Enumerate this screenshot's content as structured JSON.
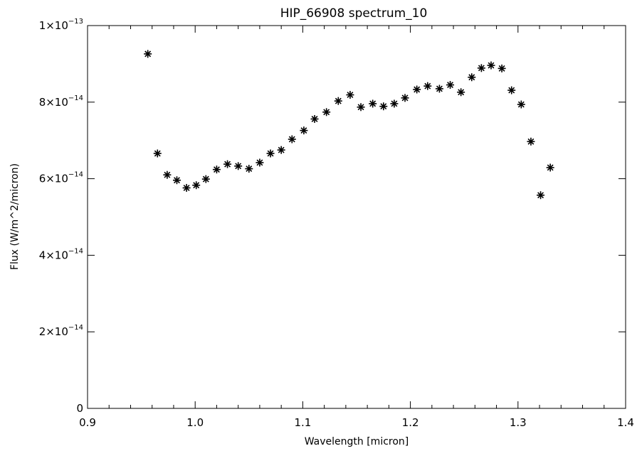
{
  "chart_data": {
    "type": "scatter",
    "title": "HIP_66908 spectrum_10",
    "xlabel": "Wavelength [micron]",
    "ylabel": "Flux (W/m^2/micron)",
    "xlim": [
      0.9,
      1.4
    ],
    "ylim": [
      0,
      1e-13
    ],
    "grid": false,
    "marker": "asterisk",
    "color": "#000000",
    "x_ticks": [
      {
        "value": 0.9,
        "label": "0.9"
      },
      {
        "value": 1.0,
        "label": "1.0"
      },
      {
        "value": 1.1,
        "label": "1.1"
      },
      {
        "value": 1.2,
        "label": "1.2"
      },
      {
        "value": 1.3,
        "label": "1.3"
      },
      {
        "value": 1.4,
        "label": "1.4"
      }
    ],
    "y_ticks": [
      {
        "value": 0,
        "mantissa": "0",
        "exponent": ""
      },
      {
        "value": 2e-14,
        "mantissa": "2×10",
        "exponent": "−14"
      },
      {
        "value": 4e-14,
        "mantissa": "4×10",
        "exponent": "−14"
      },
      {
        "value": 6e-14,
        "mantissa": "6×10",
        "exponent": "−14"
      },
      {
        "value": 8e-14,
        "mantissa": "8×10",
        "exponent": "−14"
      },
      {
        "value": 1e-13,
        "mantissa": "1×10",
        "exponent": "−13"
      }
    ],
    "x_minor_step": 0.02,
    "y_minor_step": 5e-15,
    "points": [
      {
        "x": 0.956,
        "y": 9.26e-14
      },
      {
        "x": 0.965,
        "y": 6.66e-14
      },
      {
        "x": 0.974,
        "y": 6.1e-14
      },
      {
        "x": 0.983,
        "y": 5.96e-14
      },
      {
        "x": 0.992,
        "y": 5.76e-14
      },
      {
        "x": 1.001,
        "y": 5.83e-14
      },
      {
        "x": 1.01,
        "y": 5.99e-14
      },
      {
        "x": 1.02,
        "y": 6.24e-14
      },
      {
        "x": 1.03,
        "y": 6.38e-14
      },
      {
        "x": 1.04,
        "y": 6.33e-14
      },
      {
        "x": 1.05,
        "y": 6.26e-14
      },
      {
        "x": 1.06,
        "y": 6.42e-14
      },
      {
        "x": 1.07,
        "y": 6.66e-14
      },
      {
        "x": 1.08,
        "y": 6.75e-14
      },
      {
        "x": 1.09,
        "y": 7.03e-14
      },
      {
        "x": 1.101,
        "y": 7.26e-14
      },
      {
        "x": 1.111,
        "y": 7.56e-14
      },
      {
        "x": 1.122,
        "y": 7.74e-14
      },
      {
        "x": 1.133,
        "y": 8.03e-14
      },
      {
        "x": 1.144,
        "y": 8.19e-14
      },
      {
        "x": 1.154,
        "y": 7.87e-14
      },
      {
        "x": 1.165,
        "y": 7.96e-14
      },
      {
        "x": 1.175,
        "y": 7.89e-14
      },
      {
        "x": 1.185,
        "y": 7.96e-14
      },
      {
        "x": 1.195,
        "y": 8.11e-14
      },
      {
        "x": 1.206,
        "y": 8.33e-14
      },
      {
        "x": 1.216,
        "y": 8.42e-14
      },
      {
        "x": 1.227,
        "y": 8.35e-14
      },
      {
        "x": 1.237,
        "y": 8.45e-14
      },
      {
        "x": 1.247,
        "y": 8.26e-14
      },
      {
        "x": 1.257,
        "y": 8.65e-14
      },
      {
        "x": 1.266,
        "y": 8.89e-14
      },
      {
        "x": 1.275,
        "y": 8.96e-14
      },
      {
        "x": 1.285,
        "y": 8.88e-14
      },
      {
        "x": 1.294,
        "y": 8.31e-14
      },
      {
        "x": 1.303,
        "y": 7.94e-14
      },
      {
        "x": 1.312,
        "y": 6.97e-14
      },
      {
        "x": 1.321,
        "y": 5.57e-14
      },
      {
        "x": 1.33,
        "y": 6.29e-14
      }
    ]
  }
}
